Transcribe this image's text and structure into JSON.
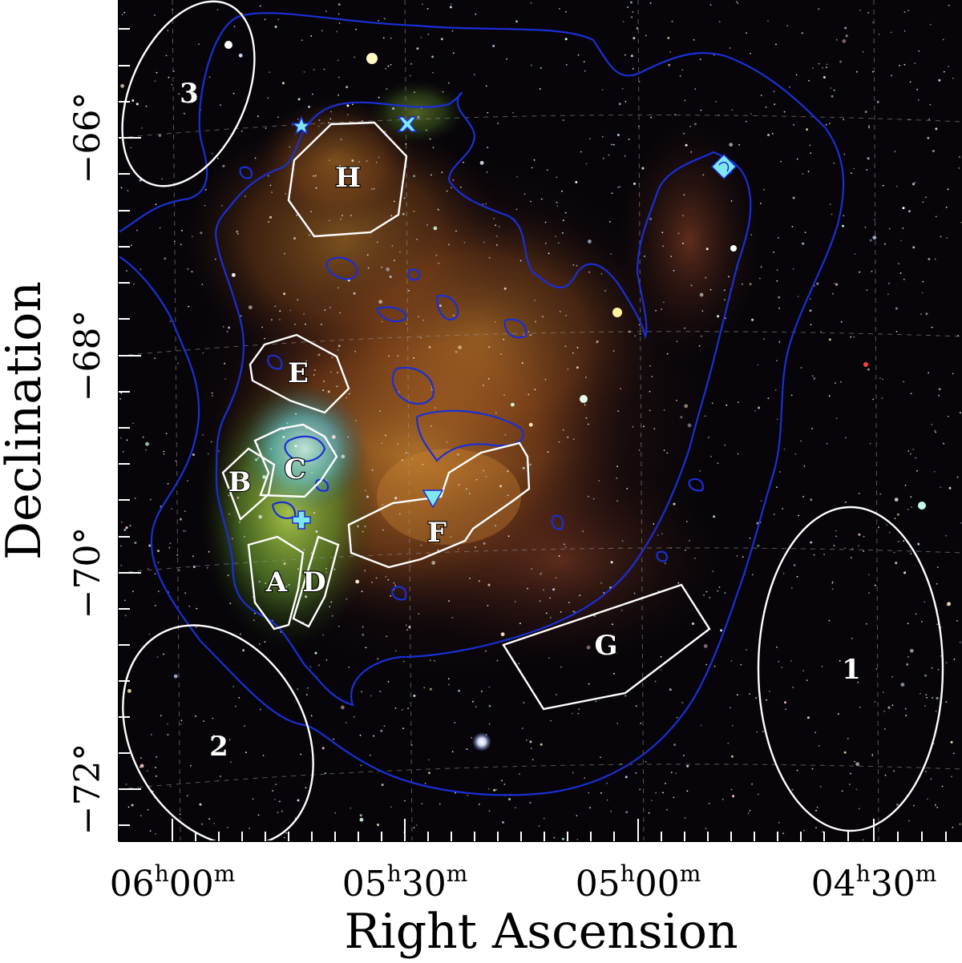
{
  "axes": {
    "xlabel": "Right Ascension",
    "ylabel": "Declination",
    "ra_ticks": [
      {
        "h": "06",
        "m": "00"
      },
      {
        "h": "05",
        "m": "30"
      },
      {
        "h": "05",
        "m": "00"
      },
      {
        "h": "04",
        "m": "30"
      }
    ],
    "dec_ticks": [
      "−66°",
      "−68°",
      "−70°",
      "−72°"
    ],
    "grid": true
  },
  "regions": {
    "A": "A",
    "B": "B",
    "C": "C",
    "D": "D",
    "E": "E",
    "F": "F",
    "G": "G",
    "H": "H"
  },
  "background_regions": {
    "r1": "1",
    "r2": "2",
    "r3": "3"
  },
  "colors": {
    "region_outline": "#ffffff",
    "contour": "#1a2fd6",
    "marker": "#7fe8ee"
  }
}
